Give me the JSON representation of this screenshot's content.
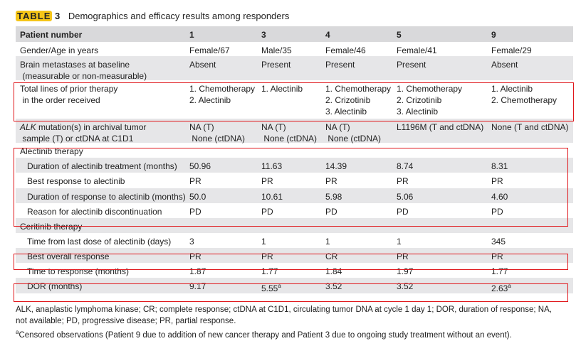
{
  "title": {
    "tag": "TABLE",
    "number": "3",
    "text": "Demographics and efficacy results among responders"
  },
  "table": {
    "columns": [
      "Patient number",
      "1",
      "3",
      "4",
      "5",
      "9"
    ],
    "rows": [
      {
        "label": "Gender/Age in years",
        "values": [
          "Female/67",
          "Male/35",
          "Female/46",
          "Female/41",
          "Female/29"
        ]
      },
      {
        "label": "Brain metastases at baseline\n (measurable or non-measurable)",
        "values": [
          "Absent",
          "Present",
          "Present",
          "Present",
          "Absent"
        ]
      },
      {
        "label": "Total lines of prior therapy\n in the order received",
        "values": [
          "1. Chemotherapy\n2. Alectinib",
          "1. Alectinib",
          "1. Chemotherapy\n2. Crizotinib\n3. Alectinib",
          "1. Chemotherapy\n2. Crizotinib\n3. Alectinib",
          "1. Alectinib\n2. Chemotherapy"
        ]
      },
      {
        "label": "ALK mutation(s) in archival tumor\n sample (T) or ctDNA at C1D1",
        "values": [
          "NA (T)\n None (ctDNA)",
          "NA (T)\n None (ctDNA)",
          "NA (T)\n None (ctDNA)",
          "L1196M (T and ctDNA)",
          "None (T and ctDNA)"
        ]
      },
      {
        "label": "Alectinib therapy",
        "values": [
          "",
          "",
          "",
          "",
          ""
        ],
        "section": true
      },
      {
        "label": "Duration of alectinib treatment (months)",
        "values": [
          "50.96",
          "11.63",
          "14.39",
          "8.74",
          "8.31"
        ],
        "indent": true
      },
      {
        "label": "Best response to alectinib",
        "values": [
          "PR",
          "PR",
          "PR",
          "PR",
          "PR"
        ],
        "indent": true
      },
      {
        "label": "Duration of response to alectinib (months)",
        "values": [
          "50.0",
          "10.61",
          "5.98",
          "5.06",
          "4.60"
        ],
        "indent": true
      },
      {
        "label": "Reason for alectinib discontinuation",
        "values": [
          "PD",
          "PD",
          "PD",
          "PD",
          "PD"
        ],
        "indent": true
      },
      {
        "label": "Ceritinib therapy",
        "values": [
          "",
          "",
          "",
          "",
          ""
        ],
        "section": true
      },
      {
        "label": "Time from last dose of alectinib (days)",
        "values": [
          "3",
          "1",
          "1",
          "1",
          "345"
        ],
        "indent": true
      },
      {
        "label": "Best overall response",
        "values": [
          "PR",
          "PR",
          "CR",
          "PR",
          "PR"
        ],
        "indent": true
      },
      {
        "label": "Time to response (months)",
        "values": [
          "1.87",
          "1.77",
          "1.84",
          "1.97",
          "1.77"
        ],
        "indent": true
      },
      {
        "label": "DOR (months)",
        "values": [
          "9.17",
          "5.55",
          "3.52",
          "3.52",
          "2.63"
        ],
        "superscripts": [
          "",
          "a",
          "",
          "",
          "a"
        ],
        "indent": true
      }
    ]
  },
  "footnotes": {
    "abbrev_line1": "ALK, anaplastic lymphoma kinase; CR; complete response; ctDNA at C1D1, circulating tumor DNA at cycle 1 day 1; DOR, duration of response; NA,",
    "abbrev_line2": "not available; PD, progressive disease; PR, partial response.",
    "censored_mark": "a",
    "censored": "Censored observations (Patient 9 due to addition of new cancer therapy and Patient 3 due to ongoing study treatment without an event)."
  },
  "highlight_color": "#e0161b",
  "tag_color": "#f5c518"
}
